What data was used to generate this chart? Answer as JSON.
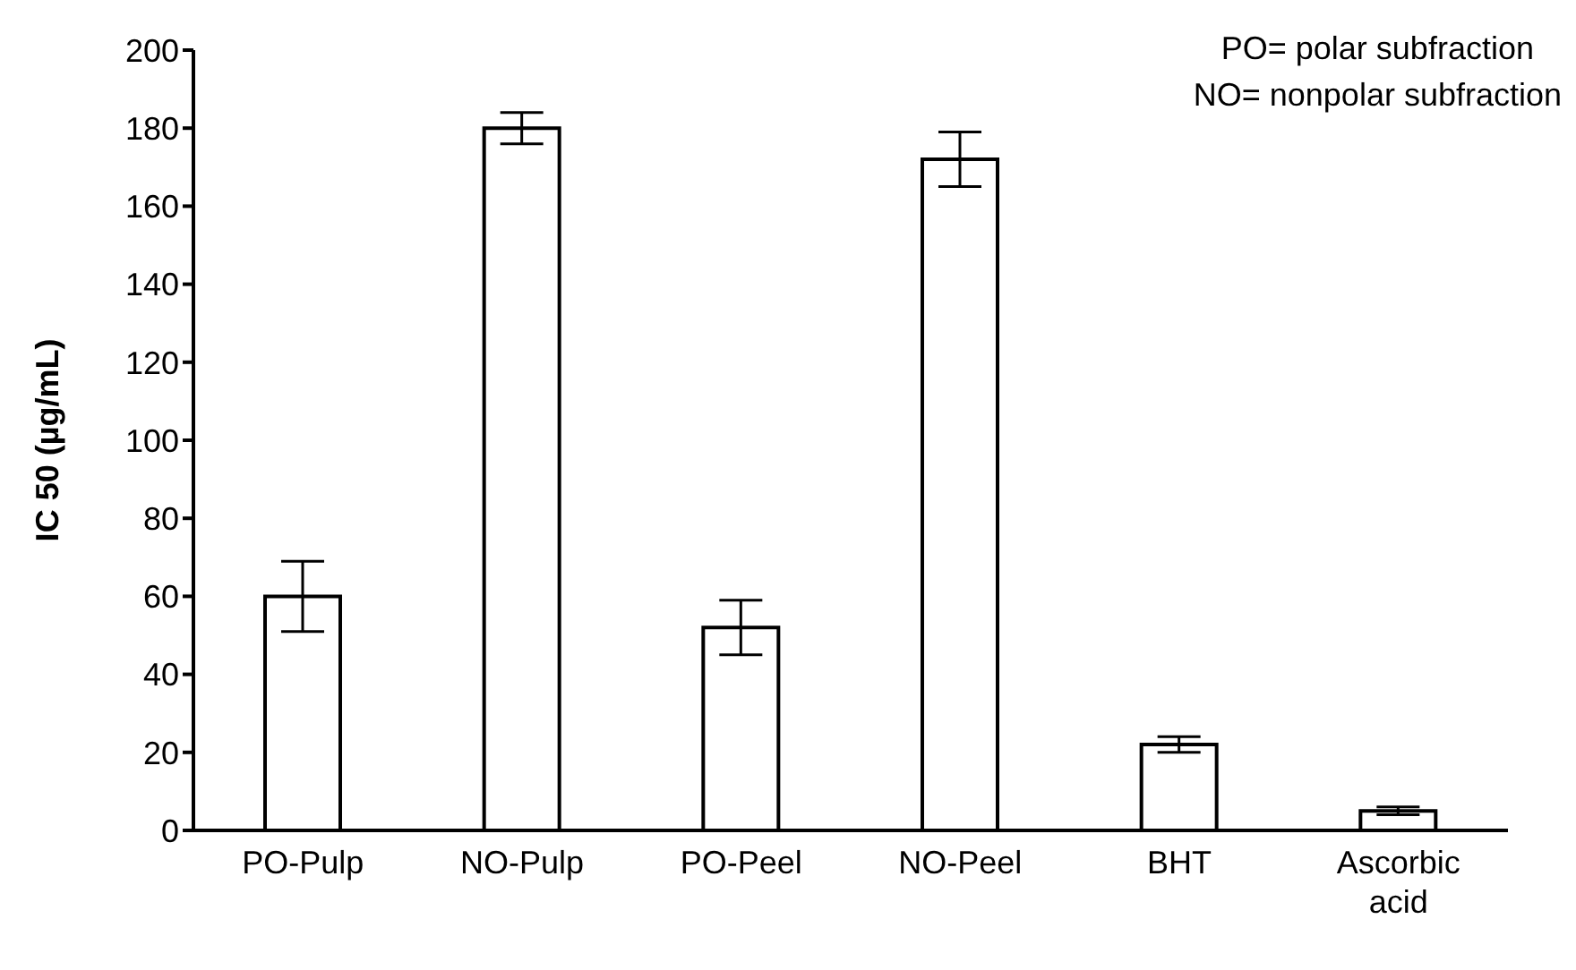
{
  "chart_data": {
    "type": "bar",
    "ylabel": "IC 50 (µg/mL)",
    "categories": [
      "PO-Pulp",
      "NO-Pulp",
      "PO-Peel",
      "NO-Peel",
      "BHT",
      "Ascorbic acid"
    ],
    "values": [
      60,
      180,
      52,
      172,
      22,
      5
    ],
    "errors": [
      9,
      4,
      7,
      7,
      2,
      1
    ],
    "color": "#ffffff",
    "ylim": [
      0,
      200
    ],
    "yticks": [
      0,
      20,
      40,
      60,
      80,
      100,
      120,
      140,
      160,
      180,
      200
    ],
    "grid": false,
    "annotations": [
      "PO= polar subfraction",
      "NO= nonpolar subfraction"
    ]
  }
}
